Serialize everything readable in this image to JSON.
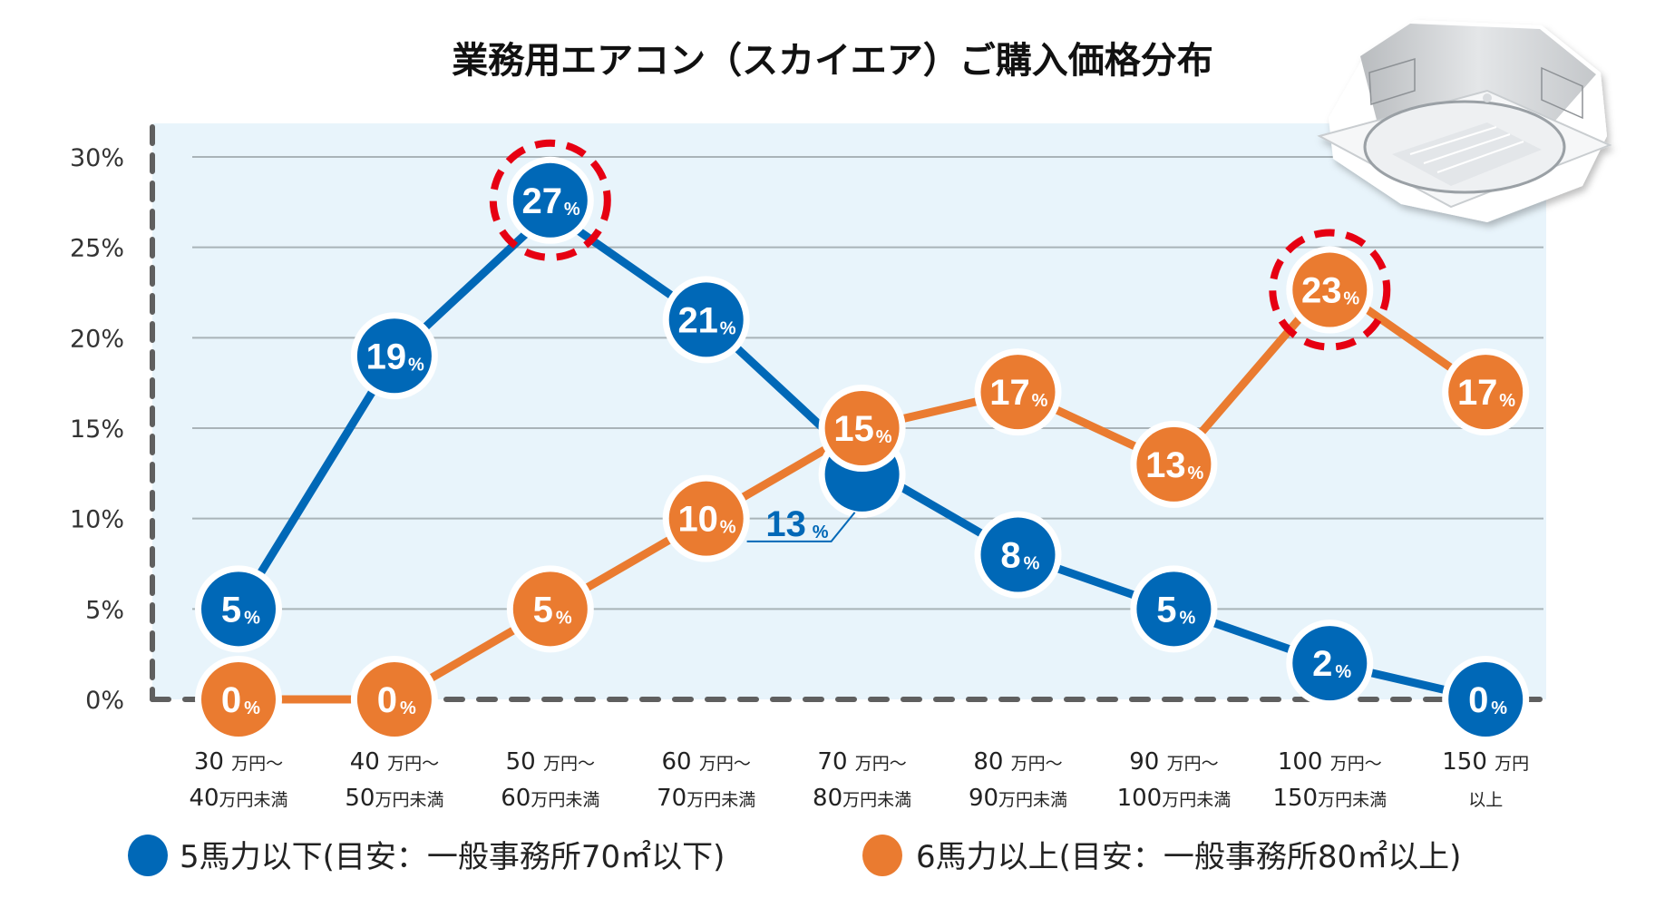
{
  "colors": {
    "blue": "#0068B7",
    "orange": "#EA7B30",
    "highlight": "#E60012",
    "plot_bg": "#E8F4FB",
    "grid": "#A9B3B8",
    "axis": "#5F5F5F"
  },
  "chart_data": {
    "type": "line",
    "title": "業務用エアコン（スカイエア）ご購入価格分布",
    "xlabel": "",
    "ylabel": "",
    "ylim": [
      0,
      30
    ],
    "yticks": [
      0,
      5,
      10,
      15,
      20,
      25,
      30
    ],
    "ytick_labels": [
      "0%",
      "5%",
      "10%",
      "15%",
      "20%",
      "25%",
      "30%"
    ],
    "grid": true,
    "categories": [
      {
        "line1_num": "30",
        "line1_unit": "万円〜",
        "line2_num": "40",
        "line2_unit": "万円未満"
      },
      {
        "line1_num": "40",
        "line1_unit": "万円〜",
        "line2_num": "50",
        "line2_unit": "万円未満"
      },
      {
        "line1_num": "50",
        "line1_unit": "万円〜",
        "line2_num": "60",
        "line2_unit": "万円未満"
      },
      {
        "line1_num": "60",
        "line1_unit": "万円〜",
        "line2_num": "70",
        "line2_unit": "万円未満"
      },
      {
        "line1_num": "70",
        "line1_unit": "万円〜",
        "line2_num": "80",
        "line2_unit": "万円未満"
      },
      {
        "line1_num": "80",
        "line1_unit": "万円〜",
        "line2_num": "90",
        "line2_unit": "万円未満"
      },
      {
        "line1_num": "90",
        "line1_unit": "万円〜",
        "line2_num": "100",
        "line2_unit": "万円未満"
      },
      {
        "line1_num": "100",
        "line1_unit": "万円〜",
        "line2_num": "150",
        "line2_unit": "万円未満"
      },
      {
        "line1_num": "150",
        "line1_unit": "万円",
        "line2_num": "",
        "line2_unit": "以上"
      }
    ],
    "series": [
      {
        "name": "5馬力以下（目安：一般事務所70㎡以下）",
        "color_key": "blue",
        "values": [
          5,
          19,
          27,
          21,
          13,
          8,
          5,
          2,
          0
        ],
        "highlight_index": 2,
        "callout_index": 4
      },
      {
        "name": "6馬力以上（目安：一般事務所80㎡以上）",
        "color_key": "orange",
        "values": [
          0,
          0,
          5,
          10,
          15,
          17,
          13,
          23,
          17
        ],
        "highlight_index": 7,
        "callout_index": null
      }
    ],
    "legend_position": "bottom",
    "value_suffix": "%"
  },
  "legend": [
    {
      "label": "5馬力以下(目安：一般事務所70㎡以下)",
      "color_key": "blue"
    },
    {
      "label": "6馬力以上(目安：一般事務所80㎡以上)",
      "color_key": "orange"
    }
  ],
  "product_image": {
    "icon": "ceiling-cassette-air-conditioner-icon"
  }
}
